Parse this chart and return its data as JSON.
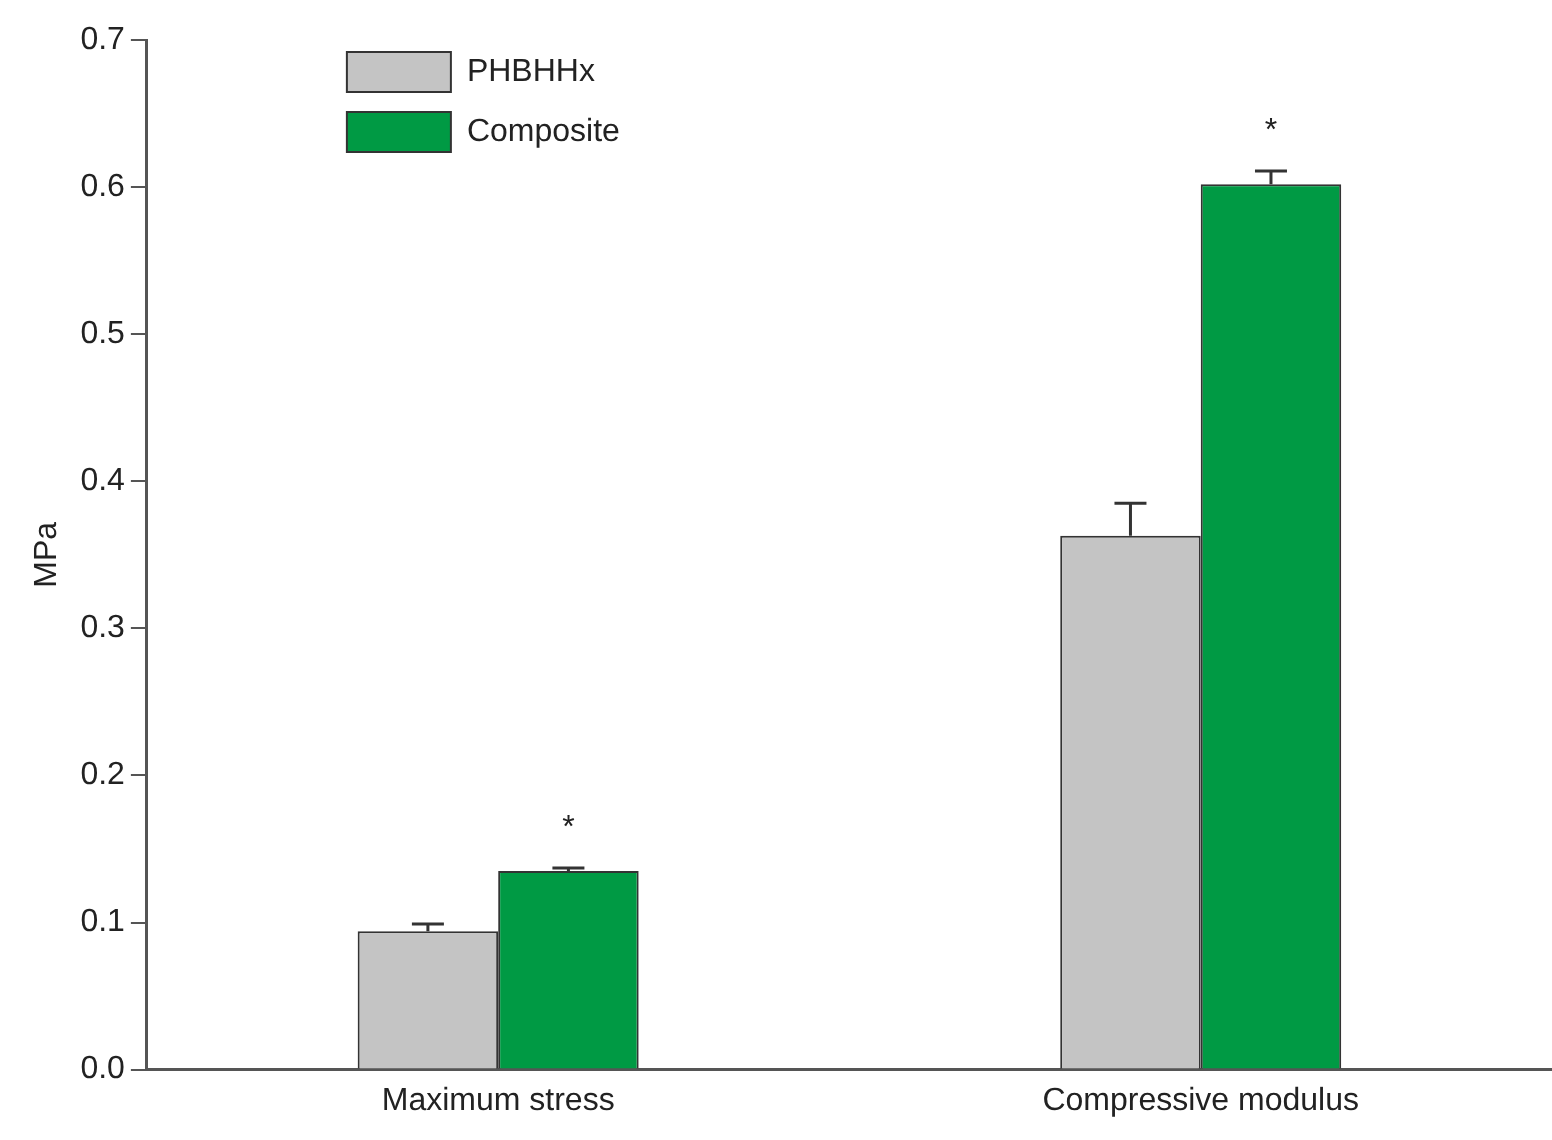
{
  "chart_data": {
    "type": "bar",
    "ylabel": "MPa",
    "categories": [
      "Maximum stress",
      "Compressive modulus"
    ],
    "series": [
      {
        "name": "PHBHHx",
        "color": "#c4c4c4",
        "values": [
          0.094,
          0.363
        ],
        "errors": [
          [
            0.094,
            0.099
          ],
          [
            0.363,
            0.385
          ]
        ]
      },
      {
        "name": "Composite",
        "color": "#009a44",
        "values": [
          0.135,
          0.602
        ],
        "errors": [
          [
            0.135,
            0.137
          ],
          [
            0.602,
            0.611
          ]
        ]
      }
    ],
    "ylim": [
      0,
      0.7
    ],
    "yticks": [
      {
        "value": 0,
        "label": "0.0"
      },
      0.1,
      0.2,
      0.3,
      0.4,
      0.5,
      0.6,
      0.7
    ],
    "annotations": [
      "*",
      "*"
    ],
    "legend": "top left",
    "grid": false
  }
}
